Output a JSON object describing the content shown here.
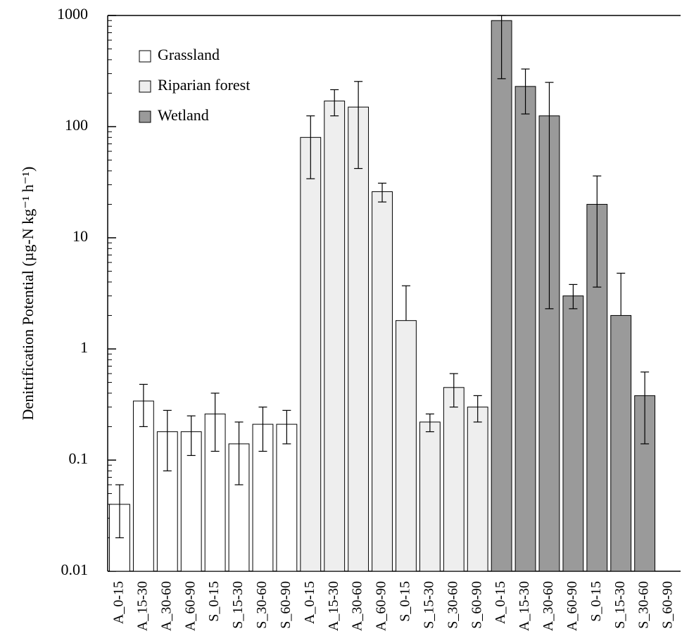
{
  "chart_data": {
    "type": "bar",
    "y_label": "Denitrification Potential (µg-N kg⁻¹ h⁻¹)",
    "categories": [
      "A_0-15",
      "A_15-30",
      "A_30-60",
      "A_60-90",
      "S_0-15",
      "S_15-30",
      "S_30-60",
      "S_60-90",
      "A_0-15",
      "A_15-30",
      "A_30-60",
      "A_60-90",
      "S_0-15",
      "S_15-30",
      "S_30-60",
      "S_60-90",
      "A_0-15",
      "A_15-30",
      "A_30-60",
      "A_60-90",
      "S_0-15",
      "S_15-30",
      "S_30-60",
      "S_60-90"
    ],
    "ylog": true,
    "ylim": [
      0.01,
      1000
    ],
    "yticks": [
      0.01,
      0.1,
      1,
      10,
      100,
      1000
    ],
    "legend": "upper-left",
    "series": [
      {
        "name": "Grassland",
        "color": "#ffffff",
        "values": [
          0.04,
          0.34,
          0.18,
          0.18,
          0.26,
          0.14,
          0.21,
          0.21,
          null,
          null,
          null,
          null,
          null,
          null,
          null,
          null,
          null,
          null,
          null,
          null,
          null,
          null,
          null,
          null
        ],
        "errors_upper": [
          0.06,
          0.48,
          0.28,
          0.25,
          0.4,
          0.22,
          0.3,
          0.28,
          null,
          null,
          null,
          null,
          null,
          null,
          null,
          null,
          null,
          null,
          null,
          null,
          null,
          null,
          null,
          null
        ],
        "errors_lower": [
          0.02,
          0.2,
          0.08,
          0.11,
          0.12,
          0.06,
          0.12,
          0.14,
          null,
          null,
          null,
          null,
          null,
          null,
          null,
          null,
          null,
          null,
          null,
          null,
          null,
          null,
          null,
          null
        ]
      },
      {
        "name": "Riparian forest",
        "color": "#eeeeee",
        "values": [
          null,
          null,
          null,
          null,
          null,
          null,
          null,
          null,
          80,
          170,
          150,
          26,
          1.8,
          0.22,
          0.45,
          0.3,
          null,
          null,
          null,
          null,
          null,
          null,
          null,
          null
        ],
        "errors_upper": [
          null,
          null,
          null,
          null,
          null,
          null,
          null,
          null,
          125,
          215,
          255,
          31,
          3.7,
          0.26,
          0.6,
          0.38,
          null,
          null,
          null,
          null,
          null,
          null,
          null,
          null
        ],
        "errors_lower": [
          null,
          null,
          null,
          null,
          null,
          null,
          null,
          null,
          34,
          125,
          42,
          21,
          null,
          0.18,
          0.3,
          0.22,
          null,
          null,
          null,
          null,
          null,
          null,
          null,
          null
        ]
      },
      {
        "name": "Wetland",
        "color": "#9a9a9a",
        "values": [
          null,
          null,
          null,
          null,
          null,
          null,
          null,
          null,
          null,
          null,
          null,
          null,
          null,
          null,
          null,
          null,
          900,
          230,
          125,
          3,
          20,
          2,
          0.38,
          null
        ],
        "errors_upper": [
          null,
          null,
          null,
          null,
          null,
          null,
          null,
          null,
          null,
          null,
          null,
          null,
          null,
          null,
          null,
          null,
          1000,
          330,
          250,
          3.8,
          36,
          4.8,
          0.62,
          null
        ],
        "errors_lower": [
          null,
          null,
          null,
          null,
          null,
          null,
          null,
          null,
          null,
          null,
          null,
          null,
          null,
          null,
          null,
          null,
          270,
          130,
          2.3,
          2.3,
          3.6,
          null,
          0.14,
          null
        ]
      }
    ]
  }
}
